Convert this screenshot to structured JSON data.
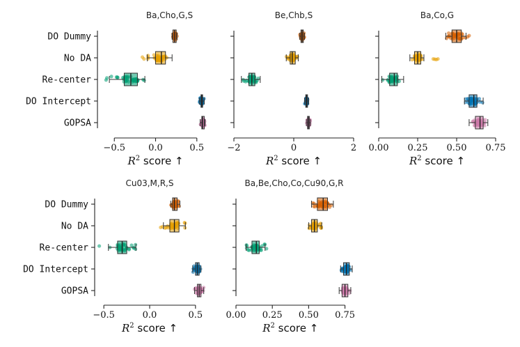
{
  "chart_data": {
    "type": "box-strip",
    "methods": [
      "DO Dummy",
      "No DA",
      "Re-center",
      "DO Intercept",
      "GOPSA"
    ],
    "colors": {
      "DO Dummy": "#d55e00",
      "No DA": "#e69f00",
      "Re-center": "#009e73",
      "DO Intercept": "#0072b2",
      "GOPSA": "#cc79a7"
    },
    "xlabel_prefix": "R",
    "xlabel_exponent": "2",
    "xlabel_suffix": " score ↑",
    "panels": [
      {
        "title": "Ba,Cho,G,S",
        "xlim": [
          -0.62,
          0.62
        ],
        "xticks": [
          -0.5,
          0.0,
          0.5
        ],
        "xticklabels": [
          "−0.5",
          "0.0",
          "0.5"
        ],
        "show_ylabels": true,
        "boxes": {
          "DO Dummy": {
            "whisker_low": 0.2,
            "q1": 0.21,
            "median": 0.23,
            "q3": 0.25,
            "whisker_high": 0.26
          },
          "No DA": {
            "whisker_low": -0.1,
            "q1": 0.0,
            "median": 0.07,
            "q3": 0.12,
            "whisker_high": 0.2
          },
          "Re-center": {
            "whisker_low": -0.56,
            "q1": -0.38,
            "median": -0.3,
            "q3": -0.22,
            "whisker_high": -0.13
          },
          "DO Intercept": {
            "whisker_low": 0.53,
            "q1": 0.55,
            "median": 0.56,
            "q3": 0.57,
            "whisker_high": 0.59
          },
          "GOPSA": {
            "whisker_low": 0.54,
            "q1": 0.56,
            "median": 0.57,
            "q3": 0.59,
            "whisker_high": 0.6
          }
        },
        "outliers": {
          "No DA": [
            -0.16,
            -0.14
          ],
          "Re-center": [
            -0.6,
            -0.59
          ]
        }
      },
      {
        "title": "Be,Chb,S",
        "xlim": [
          -2.0,
          2.0
        ],
        "xticks": [
          -2,
          0,
          2
        ],
        "xticklabels": [
          "−2",
          "0",
          "2"
        ],
        "show_ylabels": false,
        "boxes": {
          "DO Dummy": {
            "whisker_low": 0.2,
            "q1": 0.24,
            "median": 0.28,
            "q3": 0.32,
            "whisker_high": 0.36
          },
          "No DA": {
            "whisker_low": -0.25,
            "q1": -0.12,
            "median": -0.05,
            "q3": 0.05,
            "whisker_high": 0.15
          },
          "Re-center": {
            "whisker_low": -1.75,
            "q1": -1.5,
            "median": -1.4,
            "q3": -1.3,
            "whisker_high": -1.12
          },
          "DO Intercept": {
            "whisker_low": 0.36,
            "q1": 0.4,
            "median": 0.43,
            "q3": 0.46,
            "whisker_high": 0.5
          },
          "GOPSA": {
            "whisker_low": 0.42,
            "q1": 0.46,
            "median": 0.49,
            "q3": 0.52,
            "whisker_high": 0.56
          }
        },
        "outliers": {}
      },
      {
        "title": "Ba,Co,G",
        "xlim": [
          0.0,
          0.75
        ],
        "xticks": [
          0.0,
          0.25,
          0.5,
          0.75
        ],
        "xticklabels": [
          "0.00",
          "0.25",
          "0.50",
          "0.75"
        ],
        "show_ylabels": false,
        "boxes": {
          "DO Dummy": {
            "whisker_low": 0.43,
            "q1": 0.47,
            "median": 0.5,
            "q3": 0.53,
            "whisker_high": 0.56
          },
          "No DA": {
            "whisker_low": 0.2,
            "q1": 0.23,
            "median": 0.25,
            "q3": 0.27,
            "whisker_high": 0.29
          },
          "Re-center": {
            "whisker_low": 0.02,
            "q1": 0.07,
            "median": 0.1,
            "q3": 0.12,
            "whisker_high": 0.16
          },
          "DO Intercept": {
            "whisker_low": 0.55,
            "q1": 0.58,
            "median": 0.61,
            "q3": 0.63,
            "whisker_high": 0.67
          },
          "GOPSA": {
            "whisker_low": 0.58,
            "q1": 0.62,
            "median": 0.65,
            "q3": 0.67,
            "whisker_high": 0.7
          }
        },
        "outliers": {
          "DO Dummy": [
            0.57,
            0.58
          ],
          "No DA": [
            0.35,
            0.36,
            0.37,
            0.38
          ]
        }
      },
      {
        "title": "Cu03,M,R,S",
        "xlim": [
          -0.6,
          0.6
        ],
        "xticks": [
          -0.5,
          0.0,
          0.5
        ],
        "xticklabels": [
          "−0.5",
          "0.0",
          "0.5"
        ],
        "show_ylabels": true,
        "boxes": {
          "DO Dummy": {
            "whisker_low": 0.23,
            "q1": 0.25,
            "median": 0.27,
            "q3": 0.3,
            "whisker_high": 0.33
          },
          "No DA": {
            "whisker_low": 0.15,
            "q1": 0.22,
            "median": 0.27,
            "q3": 0.32,
            "whisker_high": 0.39
          },
          "Re-center": {
            "whisker_low": -0.45,
            "q1": -0.35,
            "median": -0.3,
            "q3": -0.25,
            "whisker_high": -0.15
          },
          "DO Intercept": {
            "whisker_low": 0.47,
            "q1": 0.5,
            "median": 0.52,
            "q3": 0.54,
            "whisker_high": 0.56
          },
          "GOPSA": {
            "whisker_low": 0.49,
            "q1": 0.52,
            "median": 0.54,
            "q3": 0.56,
            "whisker_high": 0.59
          }
        },
        "outliers": {
          "No DA": [
            0.12,
            0.14
          ],
          "Re-center": [
            -0.55
          ]
        }
      },
      {
        "title": "Ba,Be,Cho,Co,Cu90,G,R",
        "xlim": [
          0.0,
          0.8
        ],
        "xticks": [
          0.0,
          0.25,
          0.5,
          0.75
        ],
        "xticklabels": [
          "0.00",
          "0.25",
          "0.50",
          "0.75"
        ],
        "show_ylabels": false,
        "boxes": {
          "DO Dummy": {
            "whisker_low": 0.52,
            "q1": 0.56,
            "median": 0.6,
            "q3": 0.63,
            "whisker_high": 0.67
          },
          "No DA": {
            "whisker_low": 0.5,
            "q1": 0.52,
            "median": 0.54,
            "q3": 0.56,
            "whisker_high": 0.59
          },
          "Re-center": {
            "whisker_low": 0.07,
            "q1": 0.11,
            "median": 0.14,
            "q3": 0.16,
            "whisker_high": 0.2
          },
          "DO Intercept": {
            "whisker_low": 0.72,
            "q1": 0.74,
            "median": 0.76,
            "q3": 0.78,
            "whisker_high": 0.8
          },
          "GOPSA": {
            "whisker_low": 0.71,
            "q1": 0.73,
            "median": 0.75,
            "q3": 0.77,
            "whisker_high": 0.79
          }
        },
        "outliers": {
          "Re-center": [
            0.21
          ]
        }
      }
    ]
  }
}
